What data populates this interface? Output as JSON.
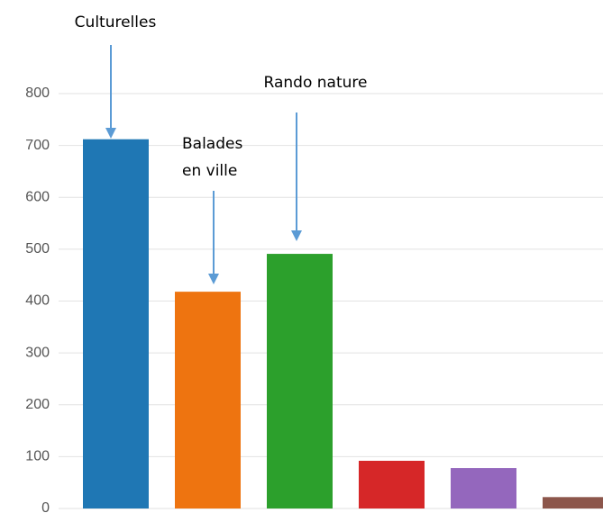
{
  "chart_data": {
    "type": "bar",
    "categories": [
      "Culturelles",
      "Balades en ville",
      "Rando nature",
      null,
      null,
      null
    ],
    "values": [
      712,
      418,
      491,
      92,
      78,
      22
    ],
    "colors": [
      "#1f77b4",
      "#ee7410",
      "#2ca02c",
      "#d62728",
      "#9467bd",
      "#8c564b"
    ],
    "ylim": [
      0,
      800
    ],
    "yticks": [
      0,
      100,
      200,
      300,
      400,
      500,
      600,
      700,
      800
    ],
    "grid": true
  }
}
